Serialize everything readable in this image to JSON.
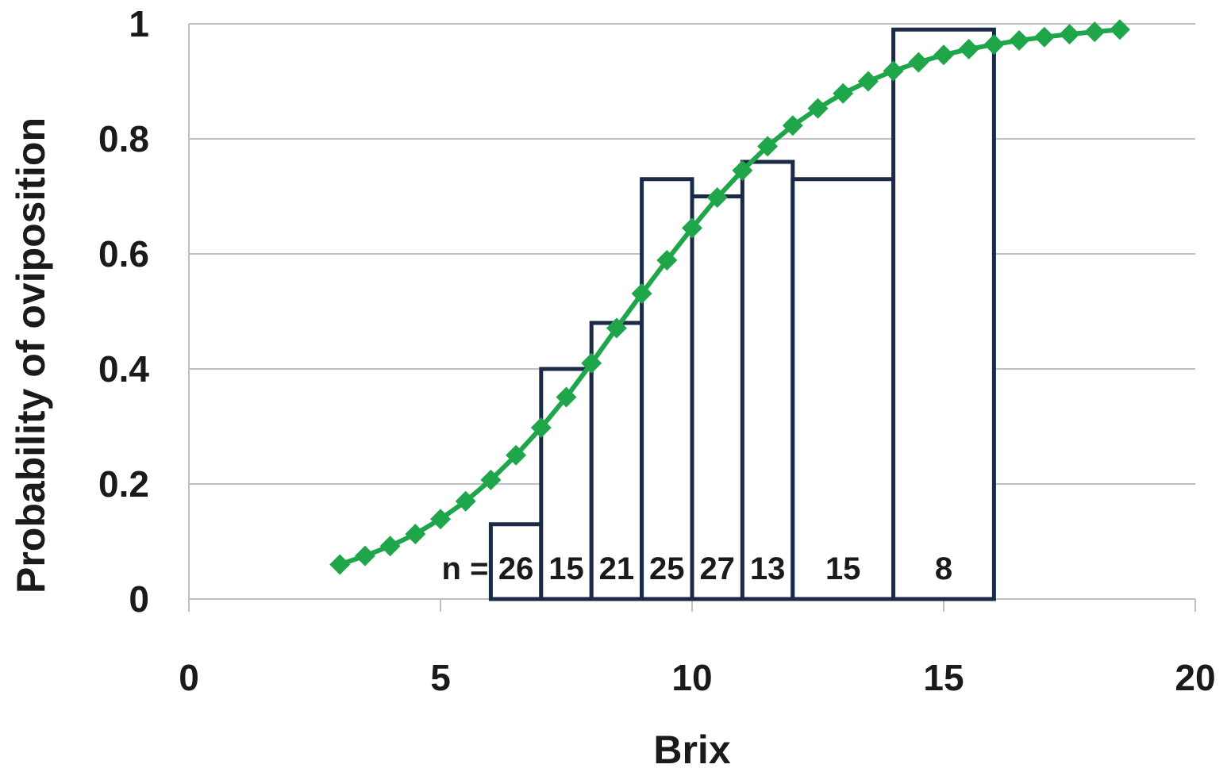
{
  "chart_data": {
    "type": "bar",
    "xlabel": "Brix",
    "ylabel": "Probability  of oviposition",
    "xlim": [
      0,
      20
    ],
    "ylim": [
      0,
      1
    ],
    "x_ticks": [
      "0",
      "5",
      "10",
      "15",
      "20"
    ],
    "y_ticks": [
      "0",
      "0.2",
      "0.4",
      "0.6",
      "0.8",
      "1"
    ],
    "grid": "horizontal",
    "n_prefix": "n =",
    "bars": [
      {
        "x0": 6,
        "x1": 7,
        "value": 0.13,
        "n": "26"
      },
      {
        "x0": 7,
        "x1": 8,
        "value": 0.4,
        "n": "15"
      },
      {
        "x0": 8,
        "x1": 9,
        "value": 0.48,
        "n": "21"
      },
      {
        "x0": 9,
        "x1": 10,
        "value": 0.73,
        "n": "25"
      },
      {
        "x0": 10,
        "x1": 11,
        "value": 0.7,
        "n": "27"
      },
      {
        "x0": 11,
        "x1": 12,
        "value": 0.76,
        "n": "13"
      },
      {
        "x0": 12,
        "x1": 14,
        "value": 0.73,
        "n": "15"
      },
      {
        "x0": 14,
        "x1": 16,
        "value": 0.99,
        "n": "8"
      }
    ],
    "curve": {
      "x": [
        3.0,
        3.5,
        4.0,
        4.5,
        5.0,
        5.5,
        6.0,
        6.5,
        7.0,
        7.5,
        8.0,
        8.5,
        9.0,
        9.5,
        10.0,
        10.5,
        11.0,
        11.5,
        12.0,
        12.5,
        13.0,
        13.5,
        14.0,
        14.5,
        15.0,
        15.5,
        16.0,
        16.5,
        17.0,
        17.5,
        18.0,
        18.5
      ],
      "y": [
        0.06,
        0.075,
        0.092,
        0.113,
        0.139,
        0.17,
        0.207,
        0.25,
        0.298,
        0.351,
        0.41,
        0.471,
        0.531,
        0.589,
        0.645,
        0.698,
        0.745,
        0.787,
        0.823,
        0.853,
        0.879,
        0.9,
        0.918,
        0.933,
        0.946,
        0.956,
        0.964,
        0.971,
        0.977,
        0.982,
        0.986,
        0.99
      ]
    },
    "colors": {
      "bar_stroke": "#1b2a47",
      "bar_fill": "#ffffff",
      "curve": "#20a64a",
      "grid": "#bfbfbf",
      "axis": "#bfbfbf",
      "accent": "#e87722"
    }
  }
}
